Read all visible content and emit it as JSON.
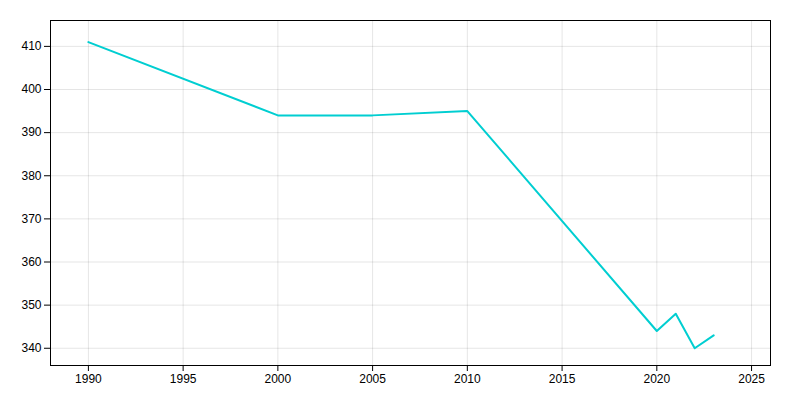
{
  "chart_data": {
    "type": "line",
    "x": [
      1990,
      2000,
      2005,
      2010,
      2020,
      2021,
      2022,
      2023
    ],
    "values": [
      411,
      394,
      394,
      395,
      344,
      348,
      340,
      343
    ],
    "color": "#00CED1",
    "xlim": [
      1988,
      2026
    ],
    "ylim": [
      336,
      416
    ],
    "xticks": [
      1990,
      1995,
      2000,
      2005,
      2010,
      2015,
      2020,
      2025
    ],
    "yticks": [
      340,
      350,
      360,
      370,
      380,
      390,
      400,
      410
    ],
    "grid": true
  }
}
